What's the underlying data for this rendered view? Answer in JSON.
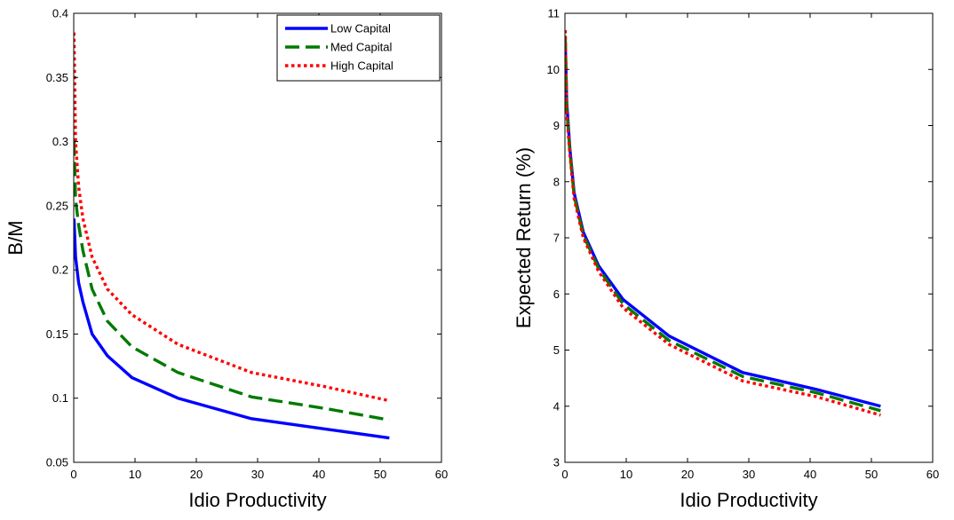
{
  "chart_data": [
    {
      "type": "line",
      "xlabel": "Idio Productivity",
      "ylabel": "B/M",
      "xlim": [
        0,
        60
      ],
      "ylim": [
        0.05,
        0.4
      ],
      "xticks": [
        0,
        10,
        20,
        30,
        40,
        50,
        60
      ],
      "yticks": [
        0.05,
        0.1,
        0.15,
        0.2,
        0.25,
        0.3,
        0.35,
        0.4
      ],
      "ytick_labels": [
        "0.05",
        "0.1",
        "0.15",
        "0.2",
        "0.25",
        "0.3",
        "0.35",
        "0.4"
      ],
      "legend": "top-right",
      "grid": false,
      "series": [
        {
          "name": "Low Capital",
          "color": "#0000ff",
          "dash": "solid",
          "x": [
            0.05,
            0.3,
            0.8,
            1.5,
            3,
            5.5,
            9.5,
            17,
            29,
            41,
            51.5
          ],
          "y": [
            0.24,
            0.21,
            0.19,
            0.175,
            0.15,
            0.133,
            0.116,
            0.1,
            0.084,
            0.076,
            0.069
          ]
        },
        {
          "name": "Med Capital",
          "color": "#007a00",
          "dash": "long-dash",
          "x": [
            0.05,
            0.3,
            0.8,
            1.5,
            3,
            5.5,
            9.5,
            17,
            29,
            41,
            51.5
          ],
          "y": [
            0.3,
            0.255,
            0.235,
            0.215,
            0.185,
            0.16,
            0.14,
            0.12,
            0.101,
            0.092,
            0.083
          ]
        },
        {
          "name": "High Capital",
          "color": "#ff0000",
          "dash": "dotted",
          "x": [
            0.05,
            0.3,
            0.8,
            1.5,
            3,
            5.5,
            9.5,
            17,
            29,
            41,
            51.5
          ],
          "y": [
            0.385,
            0.3,
            0.265,
            0.24,
            0.21,
            0.185,
            0.165,
            0.142,
            0.12,
            0.109,
            0.098
          ]
        }
      ]
    },
    {
      "type": "line",
      "xlabel": "Idio Productivity",
      "ylabel": "Expected Return (%)",
      "xlim": [
        0,
        60
      ],
      "ylim": [
        3,
        11
      ],
      "xticks": [
        0,
        10,
        20,
        30,
        40,
        50,
        60
      ],
      "yticks": [
        3,
        4,
        5,
        6,
        7,
        8,
        9,
        10,
        11
      ],
      "grid": false,
      "series": [
        {
          "name": "Low Capital",
          "color": "#0000ff",
          "dash": "solid",
          "x": [
            0.05,
            0.3,
            0.8,
            1.5,
            3,
            5.5,
            9.5,
            17,
            29,
            41,
            51.5
          ],
          "y": [
            10.5,
            9.4,
            8.6,
            7.8,
            7.1,
            6.5,
            5.9,
            5.25,
            4.6,
            4.3,
            4.0
          ]
        },
        {
          "name": "Med Capital",
          "color": "#007a00",
          "dash": "long-dash",
          "x": [
            0.05,
            0.3,
            0.8,
            1.5,
            3,
            5.5,
            9.5,
            17,
            29,
            41,
            51.5
          ],
          "y": [
            10.6,
            9.3,
            8.55,
            7.75,
            7.05,
            6.45,
            5.82,
            5.17,
            4.53,
            4.24,
            3.92
          ]
        },
        {
          "name": "High Capital",
          "color": "#ff0000",
          "dash": "dotted",
          "x": [
            0.05,
            0.3,
            0.8,
            1.5,
            3,
            5.5,
            9.5,
            17,
            29,
            41,
            51.5
          ],
          "y": [
            10.7,
            9.2,
            8.5,
            7.7,
            7.0,
            6.4,
            5.75,
            5.1,
            4.45,
            4.17,
            3.84
          ]
        }
      ]
    }
  ]
}
